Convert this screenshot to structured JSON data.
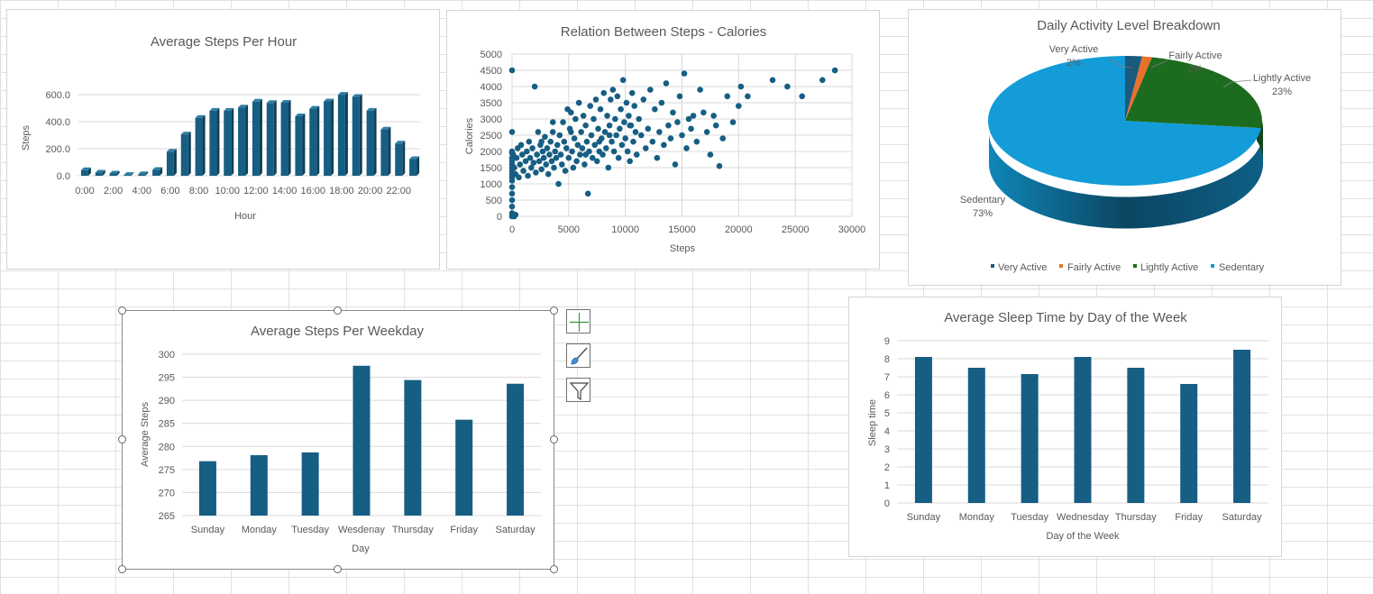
{
  "colors": {
    "bar": "#165e83",
    "very_active": "#1a5a7c",
    "fairly_active": "#e9712a",
    "lightly_active": "#1d6b1e",
    "sedentary": "#139cd8",
    "grid": "#d9d9d9"
  },
  "icons": [
    "add-chart-element-icon",
    "chart-styles-brush-icon",
    "chart-filter-funnel-icon"
  ],
  "chart_data": [
    {
      "id": "hourly",
      "type": "bar",
      "title": "Average Steps Per Hour",
      "xlabel": "Hour",
      "ylabel": "Steps",
      "ylim": [
        0,
        600
      ],
      "yticks": [
        "0.0",
        "200.0",
        "400.0",
        "600.0"
      ],
      "x_tick_labels": [
        "0:00",
        "2:00",
        "4:00",
        "6:00",
        "8:00",
        "10:00",
        "12:00",
        "14:00",
        "16:00",
        "18:00",
        "20:00",
        "22:00"
      ],
      "categories": [
        "0:00",
        "1:00",
        "2:00",
        "3:00",
        "4:00",
        "5:00",
        "6:00",
        "7:00",
        "8:00",
        "9:00",
        "10:00",
        "11:00",
        "12:00",
        "13:00",
        "14:00",
        "15:00",
        "16:00",
        "17:00",
        "18:00",
        "19:00",
        "20:00",
        "21:00",
        "22:00",
        "23:00"
      ],
      "values": [
        42,
        23,
        17,
        6,
        12,
        43,
        178,
        306,
        428,
        481,
        481,
        505,
        548,
        538,
        540,
        440,
        496,
        550,
        599,
        583,
        481,
        342,
        238,
        123
      ],
      "grid": true
    },
    {
      "id": "scatter",
      "type": "scatter",
      "title": "Relation Between Steps - Calories",
      "xlabel": "Steps",
      "ylabel": "Calories",
      "xlim": [
        0,
        30000
      ],
      "ylim": [
        0,
        5000
      ],
      "xticks": [
        "0",
        "5000",
        "10000",
        "15000",
        "20000",
        "25000",
        "30000"
      ],
      "yticks": [
        "0",
        "500",
        "1000",
        "1500",
        "2000",
        "2500",
        "3000",
        "3500",
        "4000",
        "4500",
        "5000"
      ],
      "points": [
        [
          0,
          4500
        ],
        [
          0,
          2600
        ],
        [
          0,
          2000
        ],
        [
          0,
          1950
        ],
        [
          0,
          1800
        ],
        [
          0,
          1700
        ],
        [
          0,
          1600
        ],
        [
          0,
          1500
        ],
        [
          0,
          1400
        ],
        [
          0,
          1300
        ],
        [
          0,
          1200
        ],
        [
          0,
          1100
        ],
        [
          0,
          900
        ],
        [
          0,
          700
        ],
        [
          0,
          500
        ],
        [
          0,
          300
        ],
        [
          0,
          100
        ],
        [
          0,
          0
        ],
        [
          200,
          0
        ],
        [
          300,
          50
        ],
        [
          100,
          1900
        ],
        [
          200,
          1500
        ],
        [
          300,
          1300
        ],
        [
          400,
          1800
        ],
        [
          500,
          2100
        ],
        [
          600,
          1200
        ],
        [
          700,
          1600
        ],
        [
          800,
          2200
        ],
        [
          900,
          1900
        ],
        [
          1000,
          1400
        ],
        [
          1200,
          1700
        ],
        [
          1300,
          2000
        ],
        [
          1400,
          1250
        ],
        [
          1500,
          2300
        ],
        [
          1600,
          1800
        ],
        [
          1700,
          1500
        ],
        [
          1800,
          2100
        ],
        [
          1900,
          1650
        ],
        [
          2000,
          4000
        ],
        [
          2100,
          1350
        ],
        [
          2200,
          1900
        ],
        [
          2300,
          2600
        ],
        [
          2400,
          1700
        ],
        [
          2500,
          2200
        ],
        [
          2600,
          1450
        ],
        [
          2700,
          2000
        ],
        [
          2800,
          1800
        ],
        [
          2900,
          2450
        ],
        [
          3000,
          1600
        ],
        [
          3100,
          2100
        ],
        [
          3200,
          1300
        ],
        [
          3300,
          1900
        ],
        [
          3400,
          2300
        ],
        [
          3500,
          1700
        ],
        [
          3600,
          2600
        ],
        [
          3700,
          1500
        ],
        [
          3800,
          2000
        ],
        [
          3900,
          1800
        ],
        [
          4000,
          2200
        ],
        [
          4100,
          1000
        ],
        [
          4200,
          2500
        ],
        [
          4300,
          1900
        ],
        [
          4400,
          1600
        ],
        [
          4500,
          2900
        ],
        [
          4600,
          2300
        ],
        [
          4700,
          1400
        ],
        [
          4800,
          2100
        ],
        [
          4900,
          3300
        ],
        [
          5000,
          1800
        ],
        [
          5100,
          2700
        ],
        [
          5200,
          3200
        ],
        [
          5300,
          2000
        ],
        [
          5400,
          1500
        ],
        [
          5500,
          2400
        ],
        [
          5600,
          3000
        ],
        [
          5700,
          1700
        ],
        [
          5800,
          2200
        ],
        [
          5900,
          3500
        ],
        [
          6000,
          1900
        ],
        [
          6100,
          2600
        ],
        [
          6200,
          2100
        ],
        [
          6300,
          3100
        ],
        [
          6400,
          1600
        ],
        [
          6500,
          2800
        ],
        [
          6600,
          2300
        ],
        [
          6700,
          700
        ],
        [
          6800,
          2000
        ],
        [
          6900,
          3400
        ],
        [
          7000,
          2500
        ],
        [
          7100,
          1800
        ],
        [
          7200,
          3000
        ],
        [
          7300,
          2200
        ],
        [
          7400,
          3600
        ],
        [
          7500,
          1700
        ],
        [
          7600,
          2700
        ],
        [
          7700,
          2000
        ],
        [
          7800,
          3300
        ],
        [
          7900,
          2400
        ],
        [
          8000,
          1900
        ],
        [
          8100,
          3800
        ],
        [
          8200,
          2600
        ],
        [
          8300,
          2100
        ],
        [
          8400,
          3100
        ],
        [
          8500,
          1500
        ],
        [
          8600,
          2800
        ],
        [
          8700,
          3600
        ],
        [
          8800,
          2300
        ],
        [
          8900,
          3900
        ],
        [
          9000,
          2000
        ],
        [
          9100,
          3000
        ],
        [
          9200,
          2500
        ],
        [
          9300,
          3700
        ],
        [
          9400,
          1800
        ],
        [
          9500,
          2700
        ],
        [
          9600,
          3300
        ],
        [
          9700,
          2200
        ],
        [
          9800,
          4200
        ],
        [
          9900,
          2900
        ],
        [
          10000,
          2400
        ],
        [
          10100,
          3500
        ],
        [
          10200,
          2000
        ],
        [
          10300,
          3100
        ],
        [
          10400,
          1700
        ],
        [
          10500,
          2800
        ],
        [
          10600,
          3800
        ],
        [
          10700,
          2300
        ],
        [
          10800,
          3400
        ],
        [
          10900,
          2600
        ],
        [
          11000,
          1900
        ],
        [
          11200,
          3000
        ],
        [
          11400,
          2500
        ],
        [
          11600,
          3600
        ],
        [
          11800,
          2100
        ],
        [
          12000,
          2700
        ],
        [
          12200,
          3900
        ],
        [
          12400,
          2300
        ],
        [
          12600,
          3300
        ],
        [
          12800,
          1800
        ],
        [
          13000,
          2600
        ],
        [
          13200,
          3500
        ],
        [
          13400,
          2200
        ],
        [
          13600,
          4100
        ],
        [
          13800,
          2800
        ],
        [
          14000,
          2400
        ],
        [
          14200,
          3200
        ],
        [
          14400,
          1600
        ],
        [
          14600,
          2900
        ],
        [
          14800,
          3700
        ],
        [
          15000,
          2500
        ],
        [
          15200,
          4400
        ],
        [
          15400,
          2100
        ],
        [
          15600,
          3000
        ],
        [
          15800,
          2700
        ],
        [
          16000,
          3100
        ],
        [
          16300,
          2300
        ],
        [
          16600,
          3900
        ],
        [
          16900,
          3200
        ],
        [
          17200,
          2600
        ],
        [
          17500,
          1900
        ],
        [
          17800,
          3100
        ],
        [
          18000,
          2800
        ],
        [
          18300,
          1550
        ],
        [
          18600,
          2400
        ],
        [
          19000,
          3700
        ],
        [
          19500,
          2900
        ],
        [
          20000,
          3400
        ],
        [
          20200,
          4000
        ],
        [
          20800,
          3700
        ],
        [
          23000,
          4200
        ],
        [
          24300,
          4000
        ],
        [
          25600,
          3700
        ],
        [
          27400,
          4200
        ],
        [
          28500,
          4500
        ],
        [
          2600,
          2300
        ],
        [
          3600,
          2900
        ],
        [
          5200,
          2600
        ],
        [
          6500,
          1900
        ],
        [
          7700,
          2300
        ],
        [
          8600,
          2500
        ],
        [
          10400,
          2800
        ]
      ],
      "grid": true
    },
    {
      "id": "pie",
      "type": "pie",
      "title": "Daily Activity Level Breakdown",
      "legend_position": "bottom",
      "slices": [
        {
          "name": "Very Active",
          "value": 2,
          "label": "2%"
        },
        {
          "name": "Fairly Active",
          "value": 2,
          "label": "2%"
        },
        {
          "name": "Lightly Active",
          "value": 23,
          "label": "23%"
        },
        {
          "name": "Sedentary",
          "value": 73,
          "label": "73%"
        }
      ]
    },
    {
      "id": "weekday",
      "type": "bar",
      "title": "Average Steps Per Weekday",
      "xlabel": "Day",
      "ylabel": "Average Steps",
      "ylim": [
        265,
        300
      ],
      "yticks": [
        "265",
        "270",
        "275",
        "280",
        "285",
        "290",
        "295",
        "300"
      ],
      "categories": [
        "Sunday",
        "Monday",
        "Tuesday",
        "Wesdenay",
        "Thursday",
        "Friday",
        "Saturday"
      ],
      "values": [
        276.8,
        278.1,
        278.7,
        297.5,
        294.4,
        285.8,
        293.6
      ],
      "grid": true
    },
    {
      "id": "sleep",
      "type": "bar",
      "title": "Average Sleep Time by Day of the Week",
      "xlabel": "Day of the Week",
      "ylabel": "Sleep time",
      "ylim": [
        0,
        9
      ],
      "yticks": [
        "0",
        "1",
        "2",
        "3",
        "4",
        "5",
        "6",
        "7",
        "8",
        "9"
      ],
      "categories": [
        "Sunday",
        "Monday",
        "Tuesday",
        "Wednesday",
        "Thursday",
        "Friday",
        "Saturday"
      ],
      "values": [
        8.1,
        7.5,
        7.15,
        8.1,
        7.5,
        6.6,
        8.5
      ],
      "grid": true
    }
  ]
}
